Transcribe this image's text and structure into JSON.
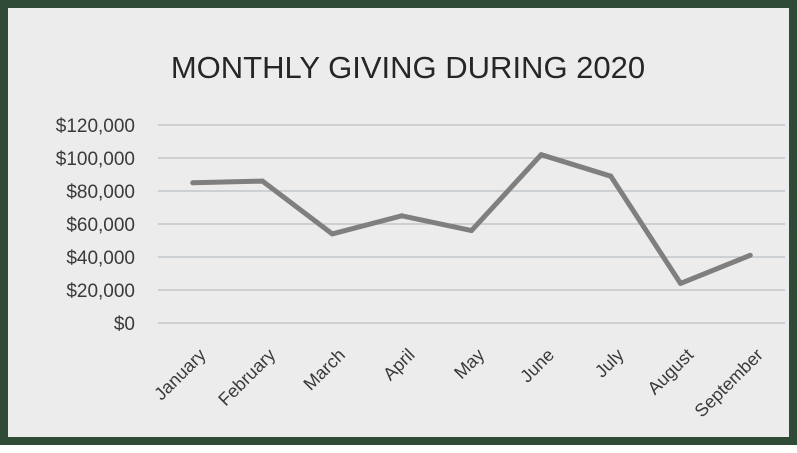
{
  "chart_data": {
    "type": "line",
    "title": "MONTHLY GIVING DURING 2020",
    "xlabel": "",
    "ylabel": "",
    "categories": [
      "January",
      "February",
      "March",
      "April",
      "May",
      "June",
      "July",
      "August",
      "September"
    ],
    "series": [
      {
        "values": [
          85000,
          86000,
          54000,
          65000,
          56000,
          102000,
          89000,
          24000,
          41000
        ]
      }
    ],
    "ylim": [
      0,
      120000
    ],
    "yticks": [
      0,
      20000,
      40000,
      60000,
      80000,
      100000,
      120000
    ],
    "ytick_labels": [
      "$0",
      "$20,000",
      "$40,000",
      "$60,000",
      "$80,000",
      "$100,000",
      "$120,000"
    ],
    "grid": true,
    "legend": "none",
    "colors": {
      "line": "#7f7f7f",
      "grid": "#b9bec4",
      "frame": "#2f4a36",
      "background": "#ececec"
    }
  }
}
